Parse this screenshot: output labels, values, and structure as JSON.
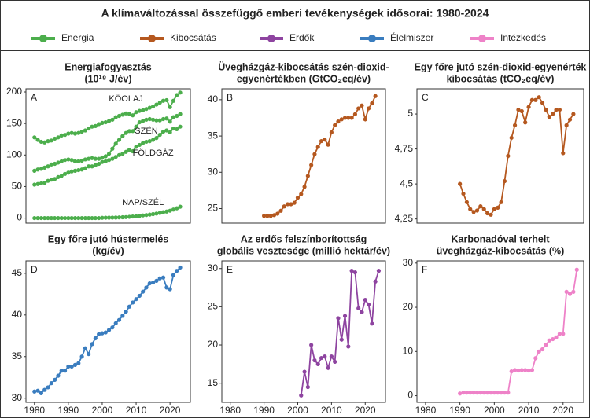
{
  "title": "A klímaváltozással összefüggő emberi tevékenységek idősorai: 1980-2024",
  "legend": [
    {
      "name": "Energia",
      "color": "#4cae4c"
    },
    {
      "name": "Kibocsátás",
      "color": "#b5581f"
    },
    {
      "name": "Erdők",
      "color": "#8e44a0"
    },
    {
      "name": "Élelmiszer",
      "color": "#3a7dbf"
    },
    {
      "name": "Intézkedés",
      "color": "#ee82c8"
    }
  ],
  "chart_data": [
    {
      "type": "line",
      "label": "A",
      "title": [
        "Energiafogyasztás",
        "(10¹⁸ J/év)"
      ],
      "x": [
        1980,
        1981,
        1982,
        1983,
        1984,
        1985,
        1986,
        1987,
        1988,
        1989,
        1990,
        1991,
        1992,
        1993,
        1994,
        1995,
        1996,
        1997,
        1998,
        1999,
        2000,
        2001,
        2002,
        2003,
        2004,
        2005,
        2006,
        2007,
        2008,
        2009,
        2010,
        2011,
        2012,
        2013,
        2014,
        2015,
        2016,
        2017,
        2018,
        2019,
        2020,
        2021,
        2022,
        2023
      ],
      "series": [
        {
          "name": "KŐOLAJ",
          "color": "#4cae4c",
          "values": [
            128,
            124,
            121,
            120,
            122,
            123,
            126,
            128,
            131,
            132,
            134,
            135,
            134,
            135,
            137,
            139,
            142,
            145,
            146,
            149,
            151,
            152,
            154,
            156,
            160,
            162,
            164,
            166,
            165,
            163,
            168,
            170,
            171,
            173,
            175,
            177,
            180,
            183,
            186,
            187,
            176,
            186,
            195,
            199
          ]
        },
        {
          "name": "SZÉN",
          "color": "#4cae4c",
          "values": [
            75,
            77,
            78,
            80,
            82,
            85,
            86,
            88,
            90,
            92,
            93,
            92,
            90,
            90,
            91,
            93,
            94,
            95,
            94,
            94,
            96,
            98,
            102,
            110,
            118,
            124,
            130,
            135,
            138,
            138,
            145,
            152,
            154,
            156,
            157,
            156,
            155,
            155,
            157,
            158,
            153,
            160,
            162,
            165
          ]
        },
        {
          "name": "FÖLDGÁZ",
          "color": "#4cae4c",
          "values": [
            53,
            54,
            55,
            56,
            59,
            61,
            62,
            65,
            67,
            70,
            72,
            74,
            75,
            76,
            77,
            79,
            82,
            82,
            84,
            86,
            89,
            90,
            92,
            94,
            97,
            100,
            102,
            105,
            108,
            106,
            113,
            116,
            119,
            121,
            122,
            124,
            127,
            132,
            137,
            139,
            136,
            142,
            141,
            145
          ]
        },
        {
          "name": "NAP/SZÉL",
          "color": "#4cae4c",
          "values": [
            0,
            0,
            0,
            0,
            0,
            0,
            0,
            0,
            0,
            0,
            0,
            0,
            0,
            0,
            0,
            0,
            0,
            0,
            0,
            0,
            0.5,
            0.6,
            0.7,
            0.8,
            0.9,
            1.1,
            1.3,
            1.6,
            2,
            2.5,
            3,
            3.5,
            4.2,
            4.8,
            5.5,
            6.3,
            7.2,
            8.2,
            9.3,
            10.4,
            11.7,
            13.5,
            15.5,
            18
          ]
        }
      ],
      "xlim": [
        1977.5,
        2026
      ],
      "ylim": [
        -8,
        205
      ],
      "yticks": [
        0,
        50,
        100,
        150,
        200
      ]
    },
    {
      "type": "line",
      "label": "B",
      "title": [
        "Üvegházgáz-kibocsátás szén-dioxid-",
        "egyenértékben (GtCO₂eq/év)"
      ],
      "x": [
        1990,
        1991,
        1992,
        1993,
        1994,
        1995,
        1996,
        1997,
        1998,
        1999,
        2000,
        2001,
        2002,
        2003,
        2004,
        2005,
        2006,
        2007,
        2008,
        2009,
        2010,
        2011,
        2012,
        2013,
        2014,
        2015,
        2016,
        2017,
        2018,
        2019,
        2020,
        2021,
        2022,
        2023
      ],
      "series": [
        {
          "color": "#b5581f",
          "values": [
            24,
            24,
            24,
            24.1,
            24.3,
            24.7,
            25.3,
            25.6,
            25.6,
            25.8,
            26.5,
            27,
            28,
            29.5,
            31,
            32.5,
            33.5,
            34.3,
            34.5,
            33.8,
            35.5,
            36.5,
            37,
            37.3,
            37.5,
            37.5,
            37.5,
            38,
            38.8,
            39.2,
            37.3,
            38.8,
            39.5,
            40.5
          ]
        }
      ],
      "xlim": [
        1977.5,
        2026
      ],
      "ylim": [
        23,
        41.5
      ],
      "yticks": [
        25,
        30,
        35,
        40
      ]
    },
    {
      "type": "line",
      "label": "C",
      "title": [
        "Egy főre jutó szén-dioxid-egyenérték",
        "kibocsátás (tCO₂eq/év)"
      ],
      "x": [
        1990,
        1991,
        1992,
        1993,
        1994,
        1995,
        1996,
        1997,
        1998,
        1999,
        2000,
        2001,
        2002,
        2003,
        2004,
        2005,
        2006,
        2007,
        2008,
        2009,
        2010,
        2011,
        2012,
        2013,
        2014,
        2015,
        2016,
        2017,
        2018,
        2019,
        2020,
        2021,
        2022,
        2023
      ],
      "series": [
        {
          "color": "#b5581f",
          "values": [
            4.5,
            4.43,
            4.37,
            4.32,
            4.3,
            4.31,
            4.34,
            4.32,
            4.29,
            4.28,
            4.32,
            4.33,
            4.37,
            4.52,
            4.7,
            4.83,
            4.92,
            5.03,
            5.02,
            4.94,
            5.05,
            5.1,
            5.1,
            5.12,
            5.08,
            5.03,
            4.98,
            5,
            5.03,
            5.03,
            4.72,
            4.92,
            4.96,
            5
          ]
        }
      ],
      "xlim": [
        1977.5,
        2026
      ],
      "ylim": [
        4.22,
        5.18
      ],
      "yticks": [
        {
          "value": 4.25,
          "label": "4,25"
        },
        {
          "value": 4.5,
          "label": "4,5"
        },
        {
          "value": 4.75,
          "label": "4,75"
        },
        5
      ]
    },
    {
      "type": "line",
      "label": "D",
      "title": [
        "Egy főre jutó hústermelés",
        "(kg/év)"
      ],
      "x": [
        1980,
        1981,
        1982,
        1983,
        1984,
        1985,
        1986,
        1987,
        1988,
        1989,
        1990,
        1991,
        1992,
        1993,
        1994,
        1995,
        1996,
        1997,
        1998,
        1999,
        2000,
        2001,
        2002,
        2003,
        2004,
        2005,
        2006,
        2007,
        2008,
        2009,
        2010,
        2011,
        2012,
        2013,
        2014,
        2015,
        2016,
        2017,
        2018,
        2019,
        2020,
        2021,
        2022,
        2023
      ],
      "series": [
        {
          "color": "#3a7dbf",
          "values": [
            30.8,
            30.9,
            30.6,
            31,
            31.3,
            31.8,
            32.2,
            32.7,
            33.3,
            33.3,
            33.8,
            33.8,
            34,
            34.2,
            35,
            36,
            35.3,
            36.5,
            37.2,
            37.7,
            37.8,
            37.9,
            38.2,
            38.5,
            39,
            39.4,
            39.9,
            40.4,
            41,
            41.5,
            41.9,
            42.3,
            42.8,
            43.3,
            43.8,
            43.9,
            44.1,
            44.4,
            44.5,
            43.3,
            43.1,
            44.8,
            45.3,
            45.7
          ]
        }
      ],
      "xlim": [
        1977.5,
        2026
      ],
      "ylim": [
        29.5,
        46.5
      ],
      "yticks": [
        30,
        35,
        40,
        45
      ],
      "xticks": [
        1980,
        1990,
        2000,
        2010,
        2020
      ]
    },
    {
      "type": "line",
      "label": "E",
      "title": [
        "Az erdős felszínborítottság",
        "globális vesztesége (millió hektár/év)"
      ],
      "x": [
        2001,
        2002,
        2003,
        2004,
        2005,
        2006,
        2007,
        2008,
        2009,
        2010,
        2011,
        2012,
        2013,
        2014,
        2015,
        2016,
        2017,
        2018,
        2019,
        2020,
        2021,
        2022,
        2023,
        2024
      ],
      "series": [
        {
          "color": "#8e44a0",
          "values": [
            13.4,
            16.5,
            14.5,
            20,
            18,
            17.5,
            18.3,
            18.5,
            17,
            18.5,
            17.8,
            23.5,
            20.7,
            23.8,
            19.8,
            29.7,
            29.5,
            24.8,
            24.3,
            25.9,
            25.3,
            22.8,
            28.3,
            29.7
          ]
        }
      ],
      "xlim": [
        1977.5,
        2026
      ],
      "ylim": [
        12.5,
        31
      ],
      "yticks": [
        15,
        20,
        25,
        30
      ],
      "xticks": [
        1980,
        1990,
        2000,
        2010,
        2020
      ]
    },
    {
      "type": "line",
      "label": "F",
      "title": [
        "Karbonadóval terhelt",
        "üvegházgáz-kibocsátás (%)"
      ],
      "x": [
        1990,
        1991,
        1992,
        1993,
        1994,
        1995,
        1996,
        1997,
        1998,
        1999,
        2000,
        2001,
        2002,
        2003,
        2004,
        2005,
        2006,
        2007,
        2008,
        2009,
        2010,
        2011,
        2012,
        2013,
        2014,
        2015,
        2016,
        2017,
        2018,
        2019,
        2020,
        2021,
        2022,
        2023,
        2024
      ],
      "series": [
        {
          "color": "#ee82c8",
          "values": [
            0.5,
            0.7,
            0.7,
            0.7,
            0.7,
            0.7,
            0.7,
            0.7,
            0.7,
            0.7,
            0.7,
            0.7,
            0.7,
            0.7,
            0.7,
            5.5,
            5.8,
            5.7,
            5.8,
            5.8,
            5.7,
            5.8,
            8.5,
            10,
            10.5,
            11.5,
            12.5,
            12.8,
            13.2,
            14,
            14,
            23.5,
            23,
            23.5,
            28.5
          ]
        }
      ],
      "xlim": [
        1977.5,
        2026
      ],
      "ylim": [
        -1.5,
        30.5
      ],
      "yticks": [
        0,
        10,
        20,
        30
      ],
      "xticks": [
        1980,
        1990,
        2000,
        2010,
        2020
      ]
    }
  ]
}
